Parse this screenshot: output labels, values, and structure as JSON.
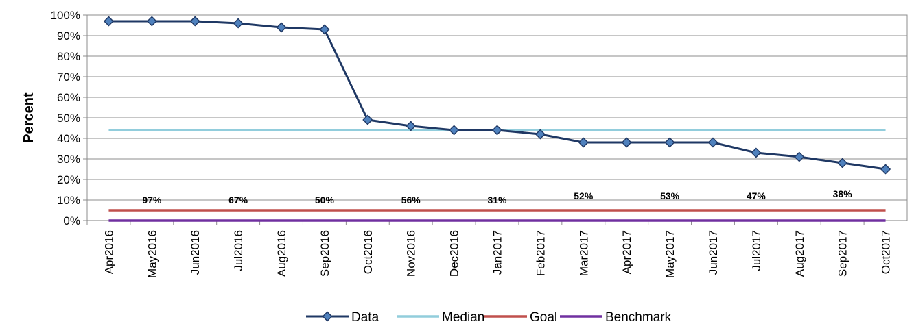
{
  "chart_data": {
    "type": "line",
    "title": "",
    "xlabel": "",
    "ylabel": "Percent",
    "ylim": [
      0,
      100
    ],
    "y_ticks": [
      "0%",
      "10%",
      "20%",
      "30%",
      "40%",
      "50%",
      "60%",
      "70%",
      "80%",
      "90%",
      "100%"
    ],
    "categories": [
      "Apr2016",
      "May2016",
      "Jun2016",
      "Jul2016",
      "Aug2016",
      "Sep2016",
      "Oct2016",
      "Nov2016",
      "Dec2016",
      "Jan2017",
      "Feb2017",
      "Mar2017",
      "Apr2017",
      "May2017",
      "Jun2017",
      "Jul2017",
      "Aug2017",
      "Sep2017",
      "Oct2017"
    ],
    "grid": "horizontal",
    "legend_position": "bottom",
    "series": [
      {
        "name": "Data",
        "color": "#1f3864",
        "marker": "diamond",
        "values": [
          97,
          97,
          97,
          96,
          94,
          93,
          49,
          46,
          44,
          44,
          42,
          38,
          38,
          38,
          38,
          33,
          31,
          28,
          25
        ]
      },
      {
        "name": "Median",
        "color": "#92cddc",
        "values": [
          44,
          44,
          44,
          44,
          44,
          44,
          44,
          44,
          44,
          44,
          44,
          44,
          44,
          44,
          44,
          44,
          44,
          44,
          44
        ]
      },
      {
        "name": "Goal",
        "color": "#c0504d",
        "values": [
          5,
          5,
          5,
          5,
          5,
          5,
          5,
          5,
          5,
          5,
          5,
          5,
          5,
          5,
          5,
          5,
          5,
          5,
          5
        ]
      },
      {
        "name": "Benchmark",
        "color": "#7030a0",
        "values": [
          0,
          0,
          0,
          0,
          0,
          0,
          0,
          0,
          0,
          0,
          0,
          0,
          0,
          0,
          0,
          0,
          0,
          0,
          0
        ]
      }
    ],
    "annotations": [
      {
        "text": "97%",
        "x": 1.5,
        "y": 10
      },
      {
        "text": "67%",
        "x": 3.5,
        "y": 10
      },
      {
        "text": "50%",
        "x": 5.5,
        "y": 10
      },
      {
        "text": "56%",
        "x": 7.5,
        "y": 10
      },
      {
        "text": "31%",
        "x": 9.5,
        "y": 10
      },
      {
        "text": "52%",
        "x": 11.5,
        "y": 12
      },
      {
        "text": "53%",
        "x": 13.5,
        "y": 12
      },
      {
        "text": "47%",
        "x": 15.5,
        "y": 12
      },
      {
        "text": "38%",
        "x": 17.5,
        "y": 13
      }
    ]
  }
}
